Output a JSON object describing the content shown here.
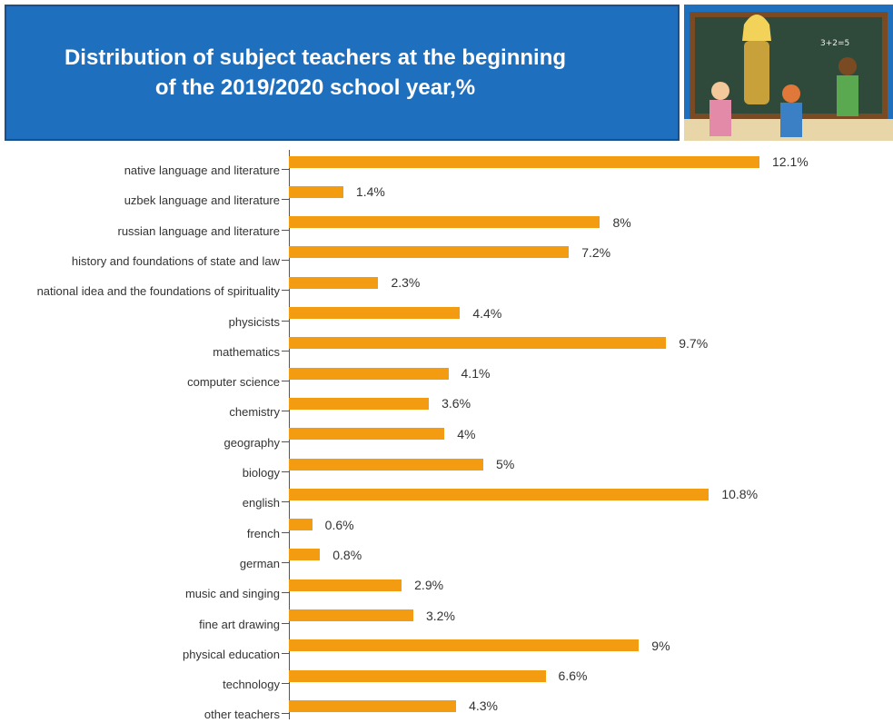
{
  "chart_data": {
    "type": "bar",
    "orientation": "horizontal",
    "title": "Distribution of subject teachers at the beginning of the 2019/2020 school year,%",
    "categories": [
      "native language and literature",
      "uzbek language and literature",
      "russian language and literature",
      "history and foundations of state and law",
      "national idea and the foundations of spirituality",
      "physicists",
      "mathematics",
      "computer science",
      "chemistry",
      "geography",
      "biology",
      "english",
      "french",
      "german",
      "music and singing",
      "fine art drawing",
      "physical education",
      "technology",
      "other teachers"
    ],
    "values": [
      12.1,
      1.4,
      8,
      7.2,
      2.3,
      4.4,
      9.7,
      4.1,
      3.6,
      4,
      5,
      10.8,
      0.6,
      0.8,
      2.9,
      3.2,
      9,
      6.6,
      4.3
    ],
    "value_labels": [
      "12.1%",
      "1.4%",
      "8%",
      "7.2%",
      "2.3%",
      "4.4%",
      "9.7%",
      "4.1%",
      "3.6%",
      "4%",
      "5%",
      "10.8%",
      "0.6%",
      "0.8%",
      "2.9%",
      "3.2%",
      "9%",
      "6.6%",
      "4.3%"
    ],
    "color": "#f39c12"
  }
}
